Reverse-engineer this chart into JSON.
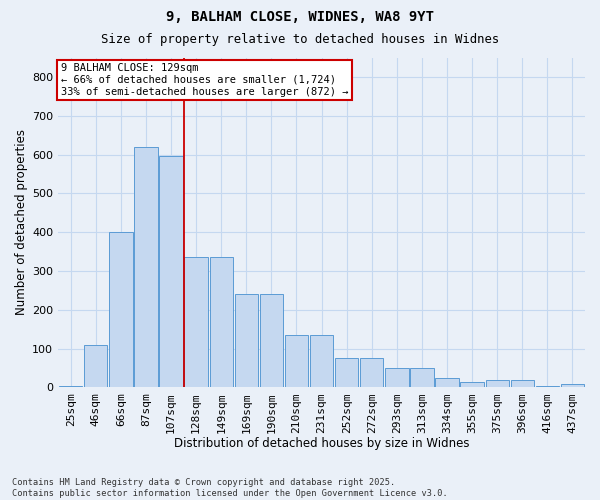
{
  "title1": "9, BALHAM CLOSE, WIDNES, WA8 9YT",
  "title2": "Size of property relative to detached houses in Widnes",
  "xlabel": "Distribution of detached houses by size in Widnes",
  "ylabel": "Number of detached properties",
  "categories": [
    "25sqm",
    "46sqm",
    "66sqm",
    "87sqm",
    "107sqm",
    "128sqm",
    "149sqm",
    "169sqm",
    "190sqm",
    "210sqm",
    "231sqm",
    "252sqm",
    "272sqm",
    "293sqm",
    "313sqm",
    "334sqm",
    "355sqm",
    "375sqm",
    "396sqm",
    "416sqm",
    "437sqm"
  ],
  "values": [
    5,
    110,
    400,
    620,
    595,
    335,
    335,
    240,
    240,
    135,
    135,
    75,
    75,
    50,
    50,
    25,
    15,
    20,
    20,
    5,
    10
  ],
  "bar_color": "#c5d8f0",
  "bar_edge_color": "#5b9bd5",
  "grid_color": "#c5d8f0",
  "vline_color": "#cc0000",
  "vline_x": 4.5,
  "annotation_text": "9 BALHAM CLOSE: 129sqm\n← 66% of detached houses are smaller (1,724)\n33% of semi-detached houses are larger (872) →",
  "annotation_box_facecolor": "#ffffff",
  "annotation_box_edgecolor": "#cc0000",
  "ylim": [
    0,
    850
  ],
  "yticks": [
    0,
    100,
    200,
    300,
    400,
    500,
    600,
    700,
    800
  ],
  "footer": "Contains HM Land Registry data © Crown copyright and database right 2025.\nContains public sector information licensed under the Open Government Licence v3.0.",
  "bg_color": "#eaf0f8"
}
